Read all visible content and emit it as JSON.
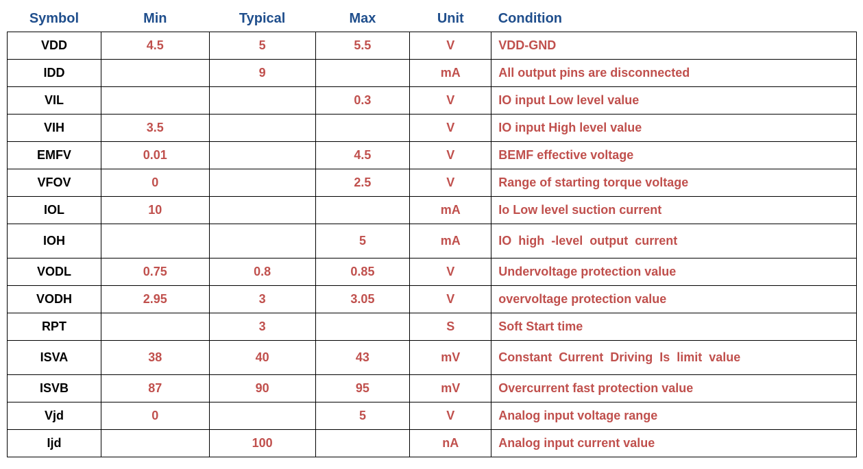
{
  "table": {
    "header": [
      "Symbol",
      "Min",
      "Typical",
      "Max",
      "Unit",
      "Condition"
    ],
    "rows": [
      [
        "VDD",
        "4.5",
        "5",
        "5.5",
        "V",
        "VDD-GND"
      ],
      [
        "IDD",
        null,
        "9",
        null,
        "mA",
        "All output pins are disconnected"
      ],
      [
        "VIL",
        null,
        null,
        "0.3",
        "V",
        "IO input Low level value"
      ],
      [
        "VIH",
        "3.5",
        null,
        null,
        "V",
        "IO input High level value"
      ],
      [
        "EMFV",
        "0.01",
        null,
        "4.5",
        "V",
        "BEMF effective voltage"
      ],
      [
        "VFOV",
        "0",
        null,
        "2.5",
        "V",
        "Range of starting torque voltage"
      ],
      [
        "IOL",
        "10",
        null,
        null,
        "mA",
        "Io Low level suction current"
      ],
      [
        "IOH",
        null,
        null,
        "5",
        "mA",
        "IO  high  -level  output  current"
      ],
      [
        "VODL",
        "0.75",
        "0.8",
        "0.85",
        "V",
        "Undervoltage protection value"
      ],
      [
        "VODH",
        "2.95",
        "3",
        "3.05",
        "V",
        "overvoltage protection value"
      ],
      [
        "RPT",
        null,
        "3",
        null,
        "S",
        "Soft Start time"
      ],
      [
        "ISVA",
        "38",
        "40",
        "43",
        "mV",
        "Constant  Current  Driving  Is  limit  value"
      ],
      [
        "ISVB",
        "87",
        "90",
        "95",
        "mV",
        "Overcurrent fast protection value"
      ],
      [
        "Vjd",
        "0",
        null,
        "5",
        "V",
        "Analog input voltage range"
      ],
      [
        "Ijd",
        null,
        "100",
        null,
        "nA",
        "Analog input current value"
      ]
    ]
  }
}
